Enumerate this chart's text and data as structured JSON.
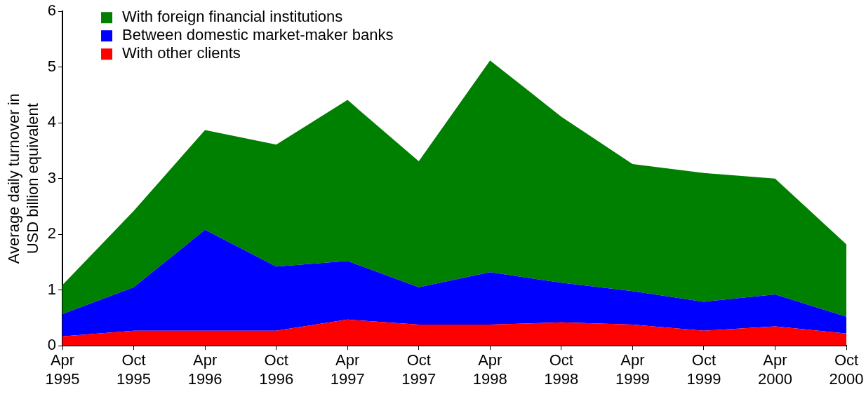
{
  "chart_data": {
    "type": "area",
    "stacked": true,
    "ylabel": "Average daily turnover in USD billion equivalent",
    "categories": [
      "Apr 1995",
      "Oct 1995",
      "Apr 1996",
      "Oct 1996",
      "Apr 1997",
      "Oct 1997",
      "Apr 1998",
      "Oct 1998",
      "Apr 1999",
      "Oct 1999",
      "Apr 2000",
      "Oct 2000"
    ],
    "series": [
      {
        "name": "With other clients",
        "color": "#ff0000",
        "values": [
          0.17,
          0.27,
          0.27,
          0.27,
          0.47,
          0.38,
          0.38,
          0.42,
          0.38,
          0.27,
          0.35,
          0.22
        ]
      },
      {
        "name": "Between domestic market-maker banks",
        "color": "#0000ff",
        "values": [
          0.4,
          0.78,
          1.81,
          1.15,
          1.05,
          0.67,
          0.94,
          0.71,
          0.6,
          0.52,
          0.57,
          0.3
        ]
      },
      {
        "name": "With foreign financial institutions",
        "color": "#008000",
        "values": [
          0.52,
          1.37,
          1.79,
          2.19,
          2.89,
          2.26,
          3.8,
          2.98,
          2.28,
          2.31,
          2.08,
          1.3
        ]
      }
    ],
    "ylim": [
      0,
      6
    ],
    "yticks": [
      0,
      1,
      2,
      3,
      4,
      5,
      6
    ],
    "grid": false,
    "legend": "top left",
    "marker": "none"
  }
}
